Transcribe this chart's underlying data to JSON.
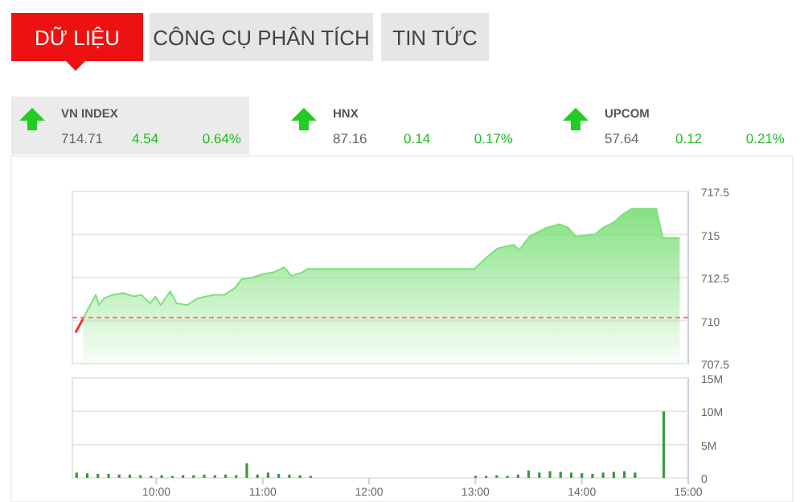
{
  "chart_data": [
    {
      "type": "other",
      "annotations": [
        "DỮ LIỆU",
        "CÔNG CỤ PHÂN TÍCH",
        "TIN TỨC",
        "VN INDEX",
        "714.71",
        "4.54",
        "0.64%",
        "HNX",
        "87.16",
        "0.14",
        "0.17%",
        "UPCOM",
        "57.64",
        "0.12",
        "0.21%"
      ]
    },
    {
      "type": "area",
      "xlim": [
        9.21,
        15
      ],
      "ylim": [
        707.5,
        717.5
      ],
      "yticks": [
        717.5,
        715,
        712.5,
        710,
        707.5
      ],
      "grid": "y",
      "tick_labels": "y",
      "ref_lines": [
        {
          "axis": "y",
          "value": 710.17,
          "color": "#f08080",
          "line_style": "dashed"
        }
      ],
      "series": [
        {
          "color": "#7ee07a",
          "x": [
            9.31,
            9.36,
            9.43,
            9.46,
            9.51,
            9.59,
            9.69,
            9.79,
            9.86,
            9.94,
            9.99,
            10.04,
            10.13,
            10.19,
            10.29,
            10.39,
            10.54,
            10.64,
            10.74,
            10.8,
            10.9,
            11.0,
            11.1,
            11.2,
            11.27,
            11.37,
            11.42,
            12.99,
            13.11,
            13.21,
            13.36,
            13.41,
            13.51,
            13.67,
            13.79,
            13.87,
            13.94,
            14.12,
            14.2,
            14.3,
            14.37,
            14.47,
            14.7,
            14.76,
            14.92
          ],
          "values": [
            710.1,
            710.7,
            711.5,
            710.9,
            711.3,
            711.5,
            711.6,
            711.4,
            711.5,
            711.0,
            711.4,
            710.9,
            711.7,
            711.0,
            710.9,
            711.3,
            711.5,
            711.5,
            711.9,
            712.4,
            712.5,
            712.7,
            712.8,
            713.1,
            712.6,
            712.8,
            713.0,
            713.0,
            713.7,
            714.2,
            714.4,
            714.1,
            714.9,
            715.4,
            715.6,
            715.4,
            714.9,
            715.0,
            715.4,
            715.7,
            716.1,
            716.5,
            716.5,
            714.8,
            714.8
          ]
        },
        {
          "type": "line",
          "color": "#ee3333",
          "x": [
            9.24,
            9.31
          ],
          "values": [
            709.3,
            710.1
          ]
        }
      ]
    },
    {
      "type": "bar",
      "xlim": [
        9.21,
        15
      ],
      "ylim": [
        0,
        15
      ],
      "yticks": [
        0,
        {
          "value": 5,
          "label": "5M"
        },
        {
          "value": 10,
          "label": "10M"
        },
        {
          "value": 15,
          "label": "15M"
        }
      ],
      "xticks": [
        {
          "value": 10,
          "label": "10:00"
        },
        {
          "value": 11,
          "label": "11:00"
        },
        {
          "value": 12,
          "label": "12:00"
        },
        {
          "value": 13,
          "label": "13:00"
        },
        {
          "value": 14,
          "label": "14:00"
        },
        {
          "value": 15,
          "label": "15:00"
        }
      ],
      "grid": "y",
      "series": [
        {
          "color": "#3a9a3a",
          "x": [
            9.25,
            9.35,
            9.45,
            9.55,
            9.65,
            9.75,
            9.85,
            9.95,
            10.05,
            10.15,
            10.25,
            10.35,
            10.45,
            10.55,
            10.65,
            10.75,
            10.85,
            10.95,
            11.05,
            11.15,
            11.25,
            11.35,
            11.45,
            13.0,
            13.1,
            13.2,
            13.3,
            13.4,
            13.5,
            13.6,
            13.7,
            13.8,
            13.9,
            14.0,
            14.1,
            14.2,
            14.3,
            14.4,
            14.5,
            14.77
          ],
          "values": [
            0.8,
            0.7,
            0.6,
            0.6,
            0.5,
            0.5,
            0.4,
            0.3,
            0.4,
            0.3,
            0.4,
            0.4,
            0.5,
            0.4,
            0.5,
            0.4,
            2.2,
            0.5,
            0.8,
            0.6,
            0.5,
            0.4,
            0.3,
            0.3,
            0.3,
            0.4,
            0.3,
            0.5,
            1.1,
            0.8,
            1.0,
            0.9,
            0.8,
            0.7,
            0.6,
            0.8,
            0.9,
            1.0,
            0.8,
            10
          ]
        }
      ]
    }
  ]
}
